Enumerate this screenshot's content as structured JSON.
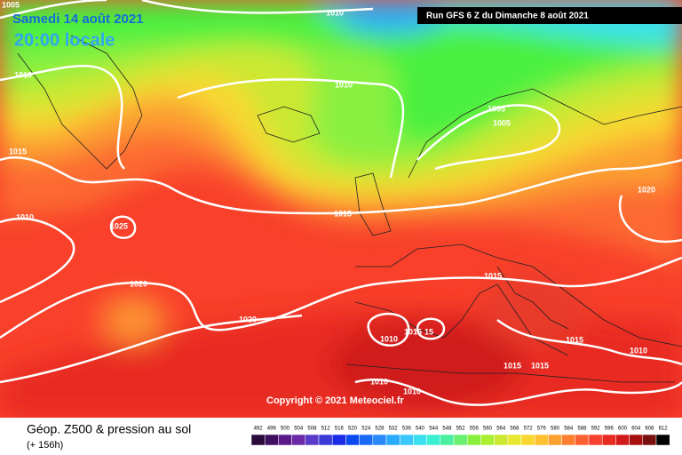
{
  "header": {
    "date": "Samedi 14 août 2021",
    "time": "20:00 locale",
    "run": "Run GFS 6 Z du Dimanche 8 août 2021"
  },
  "isobar_labels": [
    "1005",
    "1010",
    "1010",
    "1010",
    "1005",
    "1005",
    "1015",
    "1010",
    "1025",
    "1015",
    "1020",
    "1020",
    "1020",
    "1015",
    "1010",
    "1015",
    "15",
    "1015",
    "1010",
    "1015",
    "1015",
    "1010",
    "1010"
  ],
  "copyright": "Copyright © 2021 Meteociel.fr",
  "footer": {
    "title": "Géop. Z500 & pression au sol",
    "subtitle": "(+ 156h)"
  },
  "legend": {
    "values": [
      492,
      496,
      500,
      504,
      508,
      512,
      516,
      520,
      524,
      528,
      532,
      536,
      540,
      544,
      548,
      552,
      556,
      560,
      564,
      568,
      572,
      576,
      580,
      584,
      588,
      592,
      596,
      600,
      604,
      608,
      612
    ],
    "colors": [
      "#2a0a3a",
      "#3e0f5e",
      "#5a1a8a",
      "#6a2aa8",
      "#5a3ac8",
      "#3a3ad8",
      "#1a2ae8",
      "#0a4af0",
      "#1a6af8",
      "#2a8afa",
      "#2aaafc",
      "#3ac8fc",
      "#3ae0f0",
      "#3af0d0",
      "#4af0a0",
      "#6af070",
      "#8af040",
      "#aaf030",
      "#cce830",
      "#e8e830",
      "#f8d830",
      "#fcc030",
      "#fca030",
      "#fc8030",
      "#fc6030",
      "#f84030",
      "#e82a20",
      "#d01a1a",
      "#a81010",
      "#781010",
      "#000000"
    ]
  }
}
